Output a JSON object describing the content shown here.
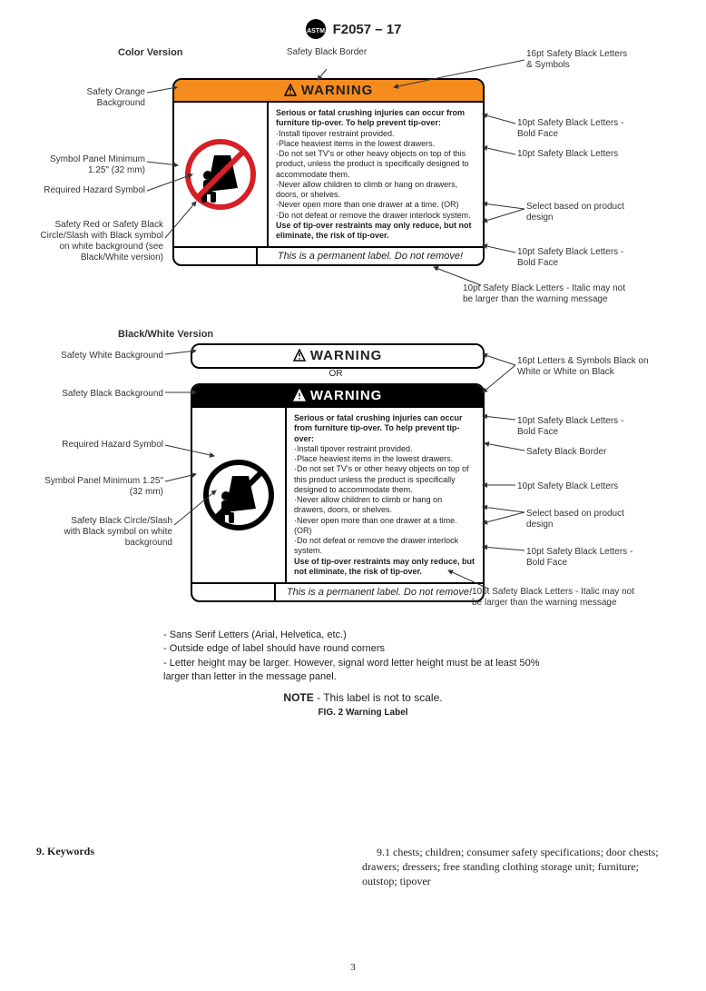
{
  "header": {
    "designation": "F2057 – 17"
  },
  "colors": {
    "safety_orange": "#f68b1e",
    "safety_black": "#000000",
    "safety_red": "#d61f26",
    "white": "#ffffff"
  },
  "color_version": {
    "title": "Color Version",
    "warning_word": "WARNING",
    "header_bg": "#f68b1e",
    "bold_lead": "Serious or fatal crushing injuries can occur from furniture tip-over. To help prevent tip-over:",
    "bullets": [
      "Install tipover restraint provided.",
      "Place heaviest items in the lowest drawers.",
      "Do not set TV's or other heavy objects on top of this product, unless the product is specifically designed to accommodate them.",
      "Never allow children to climb or hang on drawers, doors, or shelves.",
      "Never open more than one drawer at a time. (OR)",
      "Do not defeat or remove the drawer interlock system."
    ],
    "bold_tail": "Use of tip-over restraints may only reduce, but not eliminate, the risk of tip-over.",
    "permanent": "This is a permanent label. Do not remove!",
    "symbol": {
      "circle_color": "#d61f26",
      "fill": "#000000"
    },
    "callouts_left": [
      "Safety Orange Background",
      "Symbol Panel Minimum 1.25\" (32 mm)",
      "Required Hazard Symbol",
      "Safety Red or Safety Black Circle/Slash with Black symbol on white background (see Black/White version)"
    ],
    "callouts_top": [
      "Safety Black Border",
      "16pt Safety Black Letters & Symbols"
    ],
    "callouts_right": [
      "10pt Safety Black Letters - Bold Face",
      "10pt Safety Black Letters",
      "Select based on product design",
      "10pt Safety Black Letters - Bold Face",
      "10pt Safety Black Letters - Italic may not be larger than the warning message"
    ]
  },
  "bw_version": {
    "title": "Black/White Version",
    "warning_word": "WARNING",
    "or_text": "OR",
    "bold_lead": "Serious or fatal crushing injuries can occur from furniture tip-over. To help prevent tip-over:",
    "bullets": [
      "Install tipover restraint provided.",
      "Place heaviest items in the lowest drawers.",
      "Do not set TV's or other heavy objects on top of this product unless the product is specifically designed to accommodate them.",
      "Never allow children to climb or hang on drawers, doors, or shelves.",
      "Never open more than one drawer at a time. (OR)",
      "Do not defeat or remove the drawer interlock system."
    ],
    "bold_tail": "Use of tip-over restraints may only reduce, but not eliminate, the risk of tip-over.",
    "permanent": "This is a permanent label.  Do not remove!",
    "symbol": {
      "circle_color": "#000000",
      "fill": "#000000"
    },
    "callouts_left": [
      "Safety White Background",
      "Safety Black Background",
      "Required Hazard Symbol",
      "Symbol Panel Minimum 1.25\" (32 mm)",
      "Safety Black Circle/Slash with Black symbol on white background"
    ],
    "callouts_right": [
      "16pt Letters & Symbols Black on White or White on Black",
      "10pt Safety Black Letters - Bold Face",
      "Safety Black Border",
      "10pt Safety Black Letters",
      "Select based on product design",
      "10pt Safety Black Letters - Bold Face",
      "10pt Safety Black Letters - Italic may not be larger than the warning message"
    ]
  },
  "footer_notes": [
    "- Sans Serif Letters (Arial, Helvetica, etc.)",
    "- Outside edge of label should have round corners",
    "- Letter height may be larger. However, signal word letter height must be at least 50% larger than letter in the message panel."
  ],
  "note_line": "NOTE - This label is not to scale.",
  "figure_caption": "FIG. 2 Warning Label",
  "keywords": {
    "heading": "9.  Keywords",
    "body": "9.1 chests; children; consumer safety specifications; door chests; drawers; dressers; free standing clothing storage unit; furniture; outstop; tipover"
  },
  "page_number": "3",
  "typography": {
    "signal_word_pt": 16,
    "body_pt": 10,
    "font_family": "Arial, Helvetica, sans-serif"
  }
}
